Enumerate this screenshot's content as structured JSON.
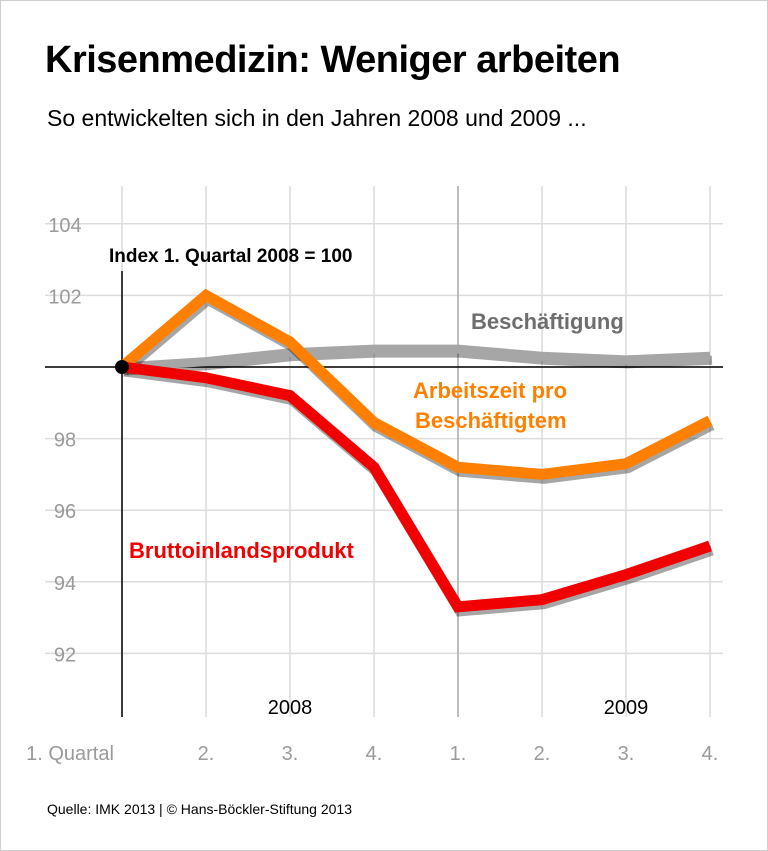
{
  "title": "Krisenmedizin: Weniger arbeiten",
  "subtitle": "So entwickelten sich in den Jahren 2008 und 2009 ...",
  "source": "Quelle: IMK 2013 | © Hans-Böckler-Stiftung 2013",
  "chart_data": {
    "type": "line",
    "annotation": "Index 1. Quartal 2008 = 100",
    "categories": [
      "1. Quartal",
      "2.",
      "3.",
      "4.",
      "1.",
      "2.",
      "3.",
      "4."
    ],
    "years": [
      {
        "label": "2008",
        "index": 2
      },
      {
        "label": "2009",
        "index": 6
      }
    ],
    "yticks": [
      92,
      94,
      96,
      98,
      102,
      104
    ],
    "ylim": [
      91,
      105
    ],
    "baseline": 100,
    "grid": true,
    "series": [
      {
        "name": "Beschäftigung",
        "color": "#a6a6a6",
        "label_color": "#6e6e6e",
        "values": [
          100,
          100.15,
          100.4,
          100.5,
          100.5,
          100.3,
          100.2,
          100.3
        ]
      },
      {
        "name": "Arbeitszeit pro Beschäftigtem",
        "label_lines": [
          "Arbeitszeit pro",
          "Beschäftigtem"
        ],
        "color": "#ff8000",
        "label_color": "#ff8000",
        "values": [
          100,
          102,
          100.7,
          98.45,
          97.2,
          97.0,
          97.3,
          98.5
        ]
      },
      {
        "name": "Bruttoinlandsprodukt",
        "color": "#f00000",
        "label_color": "#f00000",
        "values": [
          100,
          99.7,
          99.2,
          97.2,
          93.3,
          93.5,
          94.2,
          95.0
        ]
      }
    ]
  }
}
